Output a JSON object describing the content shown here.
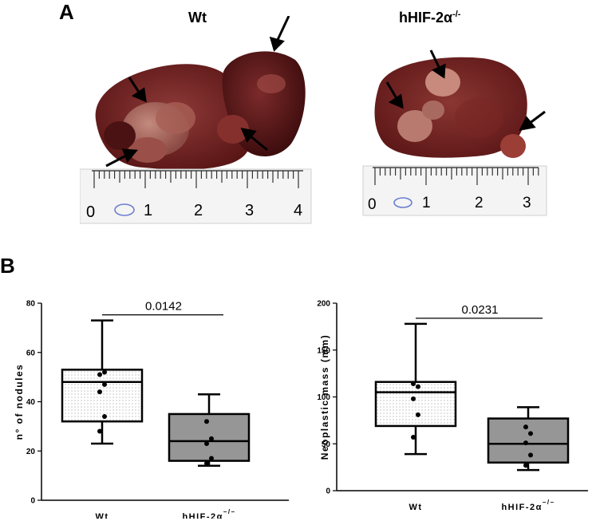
{
  "panel_a": {
    "letter": "A",
    "label_wt": "Wt",
    "label_ko": "hHIF-2α",
    "label_ko_sup": "-/-",
    "ruler_wt_digits": [
      "0",
      "1",
      "2",
      "3",
      "4"
    ],
    "ruler_ko_digits": [
      "0",
      "1",
      "2",
      "3"
    ],
    "liver_color": "#6e1d1d"
  },
  "panel_b": {
    "letter": "B"
  },
  "chart_data": [
    {
      "type": "box",
      "title": "",
      "xlabel": "",
      "ylabel": "n° of nodules",
      "ylim": [
        0,
        80
      ],
      "yticks": [
        "0",
        "20",
        "40",
        "60",
        "80"
      ],
      "categories": [
        "Wt",
        "hHIF-2α"
      ],
      "category_sups": [
        "",
        "–/–"
      ],
      "p_value": "0.0142",
      "boxes": [
        {
          "min": 23,
          "q1": 32,
          "median": 48,
          "q3": 53,
          "max": 73,
          "fill": "dots",
          "points": [
            28,
            34,
            44,
            47,
            51,
            52
          ]
        },
        {
          "min": 14,
          "q1": 16,
          "median": 24,
          "q3": 35,
          "max": 43,
          "fill": "#969696",
          "points": [
            15,
            17,
            23,
            25,
            32
          ]
        }
      ]
    },
    {
      "type": "box",
      "title": "",
      "xlabel": "",
      "ylabel": "Neoplastic mass (mm)",
      "ylim": [
        0,
        200
      ],
      "yticks": [
        "0",
        "50",
        "100",
        "150",
        "200"
      ],
      "categories": [
        "Wt",
        "hHIF-2α"
      ],
      "category_sups": [
        "",
        "–/–"
      ],
      "p_value": "0.0231",
      "boxes": [
        {
          "min": 39,
          "q1": 69,
          "median": 105,
          "q3": 116,
          "max": 178,
          "fill": "dots",
          "points": [
            57,
            81,
            98,
            111,
            114
          ]
        },
        {
          "min": 22,
          "q1": 30,
          "median": 50,
          "q3": 77,
          "max": 89,
          "fill": "#969696",
          "points": [
            27,
            38,
            51,
            61,
            68
          ]
        }
      ]
    }
  ]
}
